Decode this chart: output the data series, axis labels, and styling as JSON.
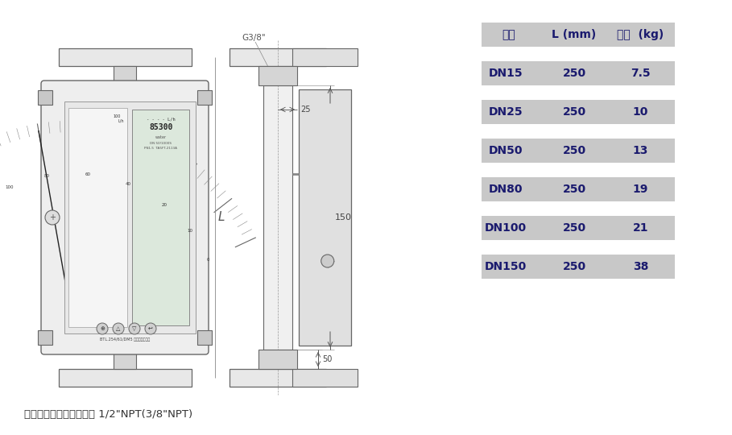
{
  "table_header": [
    "口径",
    "L (mm)",
    "重量  (kg)"
  ],
  "table_rows": [
    [
      "DN15",
      "250",
      "7.5"
    ],
    [
      "DN25",
      "250",
      "10"
    ],
    [
      "DN50",
      "250",
      "13"
    ],
    [
      "DN80",
      "250",
      "19"
    ],
    [
      "DN100",
      "250",
      "21"
    ],
    [
      "DN150",
      "250",
      "38"
    ]
  ],
  "header_bg": "#c8c8c8",
  "row_bg": "#c8c8c8",
  "text_color": "#1a1a6e",
  "caption": "（保温夹套型）夹套接口 1/2\"NPT(3/8\"NPT)",
  "bg_color": "#ffffff",
  "font_size_header": 10,
  "font_size_row": 10,
  "caption_fontsize": 9.5
}
